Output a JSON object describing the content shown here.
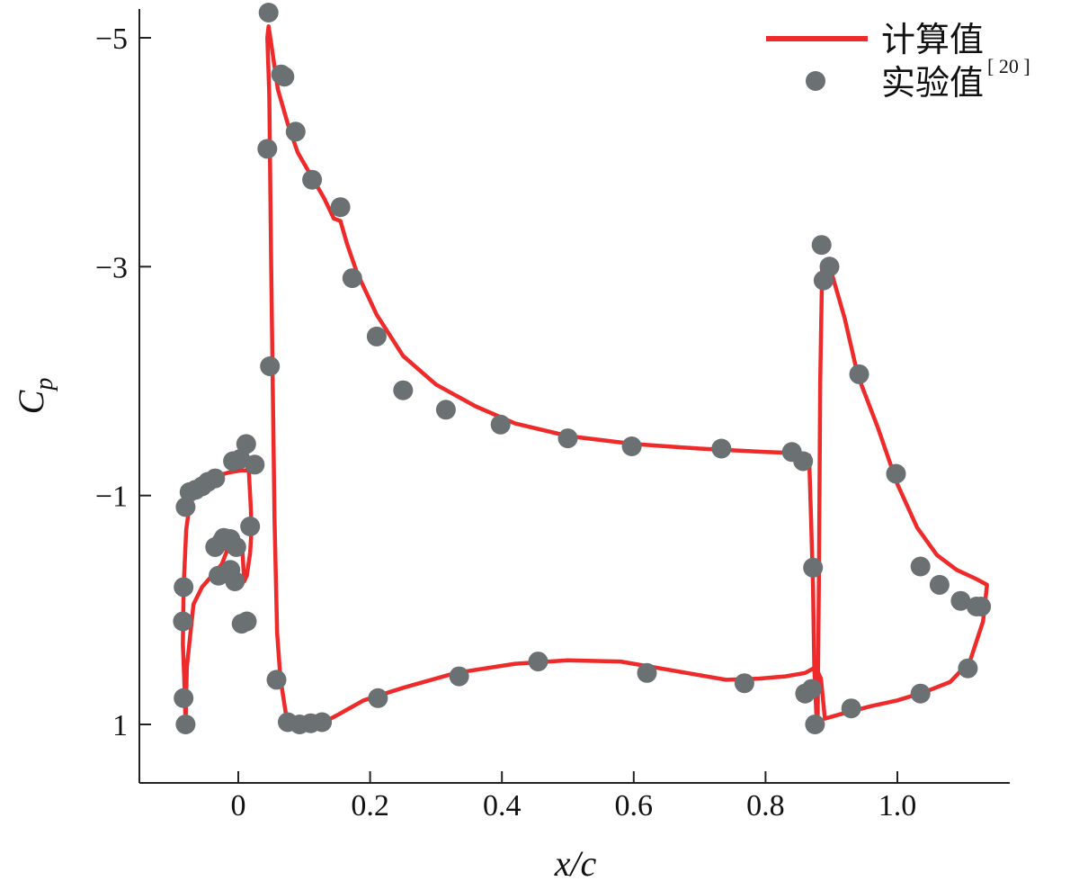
{
  "chart_data": {
    "type": "line",
    "xlabel": "x/c",
    "ylabel": "Cp",
    "xlim": [
      -0.15,
      1.17
    ],
    "ylim": [
      1.5,
      -5.25
    ],
    "y_inverted": true,
    "x_ticks": [
      0,
      0.2,
      0.4,
      0.6,
      0.8,
      1.0
    ],
    "x_tick_labels": [
      "0",
      "0.2",
      "0.4",
      "0.6",
      "0.8",
      "1.0"
    ],
    "y_ticks": [
      -5,
      -3,
      -1,
      1
    ],
    "y_tick_labels": [
      "−5",
      "−3",
      "−1",
      "1"
    ],
    "legend_position": "top-right",
    "colors": {
      "calc": "#ee2a2a",
      "exp": "#6b7173",
      "axis": "#222222"
    },
    "series": [
      {
        "name": "计算值",
        "sup": "",
        "style": "line",
        "segments": [
          [
            [
              -0.08,
              1.0
            ],
            [
              -0.082,
              0.6
            ],
            [
              -0.084,
              0.3
            ],
            [
              -0.083,
              -0.2
            ],
            [
              -0.079,
              -0.7
            ],
            [
              -0.072,
              -1.0
            ],
            [
              -0.06,
              -1.1
            ],
            [
              -0.04,
              -1.16
            ],
            [
              -0.015,
              -1.2
            ],
            [
              0.005,
              -1.22
            ],
            [
              0.016,
              -1.22
            ],
            [
              0.019,
              -0.9
            ],
            [
              0.02,
              -0.7
            ],
            [
              0.018,
              -0.5
            ],
            [
              0.013,
              -0.3
            ],
            [
              0.009,
              -0.25
            ],
            [
              0.006,
              -0.55
            ],
            [
              -0.003,
              -0.65
            ],
            [
              -0.015,
              -0.55
            ],
            [
              -0.025,
              -0.4
            ],
            [
              -0.04,
              -0.3
            ],
            [
              -0.055,
              -0.2
            ],
            [
              -0.068,
              -0.05
            ],
            [
              -0.078,
              0.5
            ],
            [
              -0.08,
              1.0
            ]
          ],
          [
            [
              0.044,
              -5.0
            ],
            [
              0.046,
              -5.1
            ],
            [
              0.05,
              -4.95
            ],
            [
              0.06,
              -4.55
            ],
            [
              0.075,
              -4.25
            ],
            [
              0.09,
              -4.0
            ],
            [
              0.11,
              -3.8
            ],
            [
              0.13,
              -3.6
            ],
            [
              0.145,
              -3.42
            ],
            [
              0.155,
              -3.4
            ],
            [
              0.165,
              -3.2
            ],
            [
              0.18,
              -2.95
            ],
            [
              0.21,
              -2.58
            ],
            [
              0.25,
              -2.22
            ],
            [
              0.3,
              -1.97
            ],
            [
              0.36,
              -1.78
            ],
            [
              0.42,
              -1.63
            ],
            [
              0.5,
              -1.52
            ],
            [
              0.6,
              -1.45
            ],
            [
              0.7,
              -1.41
            ],
            [
              0.8,
              -1.38
            ],
            [
              0.85,
              -1.37
            ],
            [
              0.866,
              -1.35
            ],
            [
              0.869,
              -0.8
            ],
            [
              0.872,
              -0.2
            ],
            [
              0.874,
              0.5
            ],
            [
              0.877,
              0.9
            ],
            [
              0.879,
              0.95
            ],
            [
              0.881,
              -0.3
            ],
            [
              0.883,
              -2.0
            ],
            [
              0.886,
              -3.02
            ],
            [
              0.893,
              -3.05
            ],
            [
              0.9,
              -2.95
            ],
            [
              0.92,
              -2.55
            ],
            [
              0.94,
              -2.05
            ],
            [
              0.97,
              -1.6
            ],
            [
              1.0,
              -1.1
            ],
            [
              1.03,
              -0.72
            ],
            [
              1.06,
              -0.48
            ],
            [
              1.09,
              -0.35
            ],
            [
              1.12,
              -0.27
            ],
            [
              1.136,
              -0.22
            ],
            [
              1.13,
              0.1
            ],
            [
              1.11,
              0.45
            ],
            [
              1.08,
              0.63
            ],
            [
              1.04,
              0.72
            ],
            [
              1.0,
              0.79
            ],
            [
              0.96,
              0.84
            ],
            [
              0.92,
              0.9
            ],
            [
              0.89,
              0.95
            ],
            [
              0.884,
              0.6
            ],
            [
              0.876,
              0.5
            ],
            [
              0.86,
              0.55
            ],
            [
              0.83,
              0.58
            ],
            [
              0.79,
              0.6
            ],
            [
              0.74,
              0.61
            ],
            [
              0.66,
              0.53
            ],
            [
              0.58,
              0.45
            ],
            [
              0.5,
              0.44
            ],
            [
              0.42,
              0.47
            ],
            [
              0.33,
              0.55
            ],
            [
              0.25,
              0.68
            ],
            [
              0.19,
              0.79
            ],
            [
              0.15,
              0.92
            ],
            [
              0.13,
              0.98
            ],
            [
              0.1,
              1.0
            ],
            [
              0.078,
              0.98
            ],
            [
              0.072,
              0.9
            ],
            [
              0.064,
              0.6
            ],
            [
              0.059,
              0.2
            ],
            [
              0.055,
              -0.8
            ],
            [
              0.05,
              -3.0
            ],
            [
              0.047,
              -4.5
            ],
            [
              0.044,
              -5.0
            ]
          ]
        ]
      },
      {
        "name": "实验值",
        "sup": "[ 20 ]",
        "style": "markers",
        "points": [
          [
            -0.08,
            1.0
          ],
          [
            -0.083,
            0.77
          ],
          [
            -0.084,
            0.1
          ],
          [
            -0.083,
            -0.2
          ],
          [
            -0.08,
            -0.9
          ],
          [
            -0.074,
            -1.03
          ],
          [
            -0.065,
            -1.05
          ],
          [
            -0.055,
            -1.08
          ],
          [
            -0.046,
            -1.12
          ],
          [
            -0.035,
            -1.15
          ],
          [
            -0.008,
            -1.3
          ],
          [
            0.003,
            -1.32
          ],
          [
            0.012,
            -1.45
          ],
          [
            0.025,
            -1.27
          ],
          [
            0.018,
            -0.73
          ],
          [
            0.013,
            0.1
          ],
          [
            0.005,
            0.12
          ],
          [
            -0.005,
            -0.25
          ],
          [
            -0.012,
            -0.35
          ],
          [
            -0.025,
            -0.6
          ],
          [
            -0.022,
            -0.63
          ],
          [
            -0.012,
            -0.62
          ],
          [
            -0.003,
            -0.55
          ],
          [
            -0.035,
            -0.55
          ],
          [
            -0.03,
            -0.3
          ],
          [
            0.046,
            -5.22
          ],
          [
            0.044,
            -4.03
          ],
          [
            0.048,
            -2.13
          ],
          [
            0.07,
            -4.66
          ],
          [
            0.065,
            -4.68
          ],
          [
            0.087,
            -4.18
          ],
          [
            0.112,
            -3.76
          ],
          [
            0.155,
            -3.52
          ],
          [
            0.173,
            -2.9
          ],
          [
            0.21,
            -2.39
          ],
          [
            0.25,
            -1.92
          ],
          [
            0.315,
            -1.75
          ],
          [
            0.398,
            -1.62
          ],
          [
            0.5,
            -1.5
          ],
          [
            0.597,
            -1.43
          ],
          [
            0.733,
            -1.41
          ],
          [
            0.84,
            -1.38
          ],
          [
            0.857,
            -1.3
          ],
          [
            0.872,
            -0.37
          ],
          [
            0.885,
            -3.19
          ],
          [
            0.888,
            -2.88
          ],
          [
            0.897,
            -3.0
          ],
          [
            0.942,
            -2.06
          ],
          [
            0.998,
            -1.19
          ],
          [
            1.035,
            -0.38
          ],
          [
            1.064,
            -0.22
          ],
          [
            1.096,
            -0.08
          ],
          [
            1.12,
            -0.03
          ],
          [
            1.127,
            -0.03
          ],
          [
            1.107,
            0.51
          ],
          [
            1.035,
            0.73
          ],
          [
            0.93,
            0.86
          ],
          [
            0.875,
            1.0
          ],
          [
            0.86,
            0.73
          ],
          [
            0.87,
            0.69
          ],
          [
            0.768,
            0.64
          ],
          [
            0.62,
            0.55
          ],
          [
            0.455,
            0.45
          ],
          [
            0.335,
            0.58
          ],
          [
            0.212,
            0.77
          ],
          [
            0.127,
            0.98
          ],
          [
            0.11,
            0.99
          ],
          [
            0.093,
            1.0
          ],
          [
            0.075,
            0.98
          ],
          [
            0.058,
            0.61
          ]
        ]
      }
    ]
  }
}
